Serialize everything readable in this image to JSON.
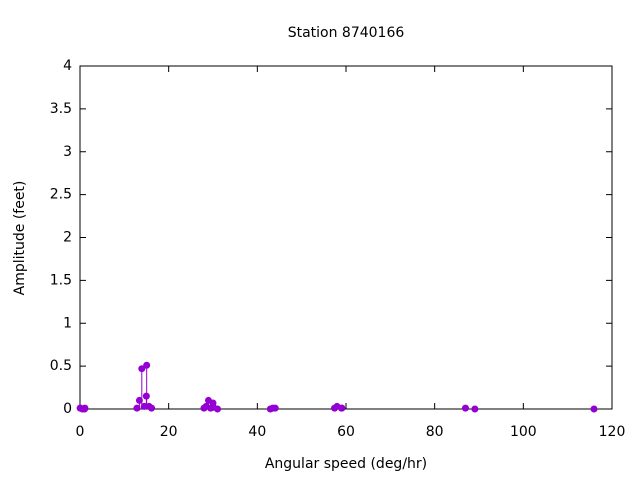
{
  "chart_data": {
    "type": "stem",
    "title": "Station 8740166",
    "x_label": "Angular speed (deg/hr)",
    "y_label": "Amplitude (feet)",
    "x": [
      0.04,
      0.08,
      0.54,
      1.02,
      1.1,
      12.85,
      13.4,
      13.94,
      14.49,
      14.96,
      15.04,
      15.59,
      16.14,
      27.97,
      28.44,
      28.98,
      29.46,
      30.0,
      30.08,
      31.02,
      42.93,
      43.48,
      44.03,
      57.42,
      57.97,
      58.98,
      59.07,
      86.95,
      89.07,
      115.94
    ],
    "series": [
      {
        "name": "Amplitude",
        "color": "#9400d3",
        "values": [
          0.01,
          0.01,
          0.0,
          0.0,
          0.01,
          0.01,
          0.1,
          0.47,
          0.03,
          0.15,
          0.51,
          0.03,
          0.01,
          0.01,
          0.03,
          0.1,
          0.01,
          0.07,
          0.02,
          0.0,
          0.0,
          0.01,
          0.01,
          0.01,
          0.03,
          0.01,
          0.01,
          0.01,
          0.0,
          0.0
        ]
      }
    ],
    "xlim": [
      0,
      120
    ],
    "xticks": [
      0,
      20,
      40,
      60,
      80,
      100,
      120
    ],
    "ylim": [
      0,
      4
    ],
    "yticks": [
      0,
      0.5,
      1,
      1.5,
      2,
      2.5,
      3,
      3.5,
      4
    ],
    "grid": false
  }
}
